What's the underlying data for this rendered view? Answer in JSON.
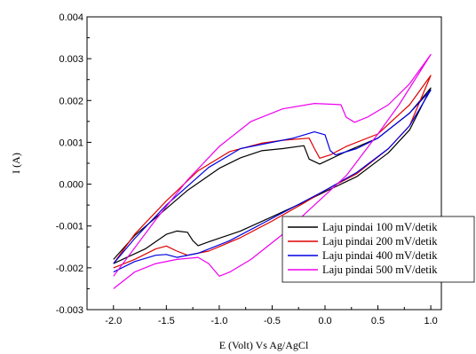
{
  "chart_data": {
    "type": "line",
    "title": "",
    "xlabel": "E (Volt) Vs Ag/AgCl",
    "ylabel": "I (A)",
    "xlim": [
      -2.25,
      1.1
    ],
    "ylim": [
      -0.003,
      0.004
    ],
    "x_ticks": [
      "-2.0",
      "-1.5",
      "-1.0",
      "-0.5",
      "0.0",
      "0.5",
      "1.0"
    ],
    "y_ticks": [
      "0.004",
      "0.003",
      "0.002",
      "0.001",
      "0.000",
      "-0.001",
      "-0.002",
      "-0.003"
    ],
    "grid": false,
    "legend_position": "bottom-right",
    "series": [
      {
        "name": "Laju pindai 100 mV/detik",
        "color": "#000000",
        "points": [
          [
            -2.0,
            -0.0019
          ],
          [
            -1.7,
            -0.00155
          ],
          [
            -1.5,
            -0.0012
          ],
          [
            -1.4,
            -0.00112
          ],
          [
            -1.3,
            -0.00115
          ],
          [
            -1.25,
            -0.00135
          ],
          [
            -1.2,
            -0.00147
          ],
          [
            -1.1,
            -0.00138
          ],
          [
            -0.8,
            -0.00112
          ],
          [
            -0.5,
            -0.00078
          ],
          [
            -0.2,
            -0.00043
          ],
          [
            0.0,
            -0.00018
          ],
          [
            0.3,
            0.00018
          ],
          [
            0.6,
            0.00075
          ],
          [
            0.8,
            0.0013
          ],
          [
            1.0,
            0.0023
          ],
          [
            0.8,
            0.0017
          ],
          [
            0.5,
            0.0011
          ],
          [
            0.2,
            0.00078
          ],
          [
            0.05,
            0.0006
          ],
          [
            -0.05,
            0.00048
          ],
          [
            -0.15,
            0.0006
          ],
          [
            -0.2,
            0.00092
          ],
          [
            -0.4,
            0.00085
          ],
          [
            -0.6,
            0.0008
          ],
          [
            -0.8,
            0.00063
          ],
          [
            -1.0,
            0.00038
          ],
          [
            -1.3,
            -0.00015
          ],
          [
            -1.6,
            -0.0008
          ],
          [
            -1.8,
            -0.00123
          ],
          [
            -2.0,
            -0.0018
          ]
        ]
      },
      {
        "name": "Laju pindai 200 mV/detik",
        "color": "#e00000",
        "points": [
          [
            -2.0,
            -0.002
          ],
          [
            -1.8,
            -0.0018
          ],
          [
            -1.6,
            -0.00155
          ],
          [
            -1.5,
            -0.00148
          ],
          [
            -1.4,
            -0.0016
          ],
          [
            -1.3,
            -0.0017
          ],
          [
            -1.1,
            -0.0016
          ],
          [
            -0.8,
            -0.00128
          ],
          [
            -0.5,
            -0.00088
          ],
          [
            -0.2,
            -0.00045
          ],
          [
            0.0,
            -0.00015
          ],
          [
            0.3,
            0.00025
          ],
          [
            0.6,
            0.00085
          ],
          [
            0.8,
            0.0014
          ],
          [
            1.0,
            0.0026
          ],
          [
            0.8,
            0.0019
          ],
          [
            0.5,
            0.0012
          ],
          [
            0.2,
            0.0009
          ],
          [
            0.05,
            0.0007
          ],
          [
            -0.05,
            0.00062
          ],
          [
            -0.1,
            0.00085
          ],
          [
            -0.15,
            0.0011
          ],
          [
            -0.4,
            0.00105
          ],
          [
            -0.6,
            0.00098
          ],
          [
            -0.9,
            0.00078
          ],
          [
            -1.2,
            0.00032
          ],
          [
            -1.5,
            -0.0004
          ],
          [
            -1.8,
            -0.0012
          ],
          [
            -2.0,
            -0.0019
          ]
        ]
      },
      {
        "name": "Laju pindai 400 mV/detik",
        "color": "#0000e0",
        "points": [
          [
            -2.0,
            -0.0021
          ],
          [
            -1.8,
            -0.00185
          ],
          [
            -1.6,
            -0.0017
          ],
          [
            -1.5,
            -0.00168
          ],
          [
            -1.4,
            -0.00175
          ],
          [
            -1.2,
            -0.00165
          ],
          [
            -0.9,
            -0.00135
          ],
          [
            -0.6,
            -0.00095
          ],
          [
            -0.3,
            -0.00055
          ],
          [
            0.0,
            -0.00015
          ],
          [
            0.3,
            0.00028
          ],
          [
            0.6,
            0.00085
          ],
          [
            0.8,
            0.0014
          ],
          [
            1.0,
            0.00225
          ],
          [
            0.8,
            0.0017
          ],
          [
            0.5,
            0.0011
          ],
          [
            0.3,
            0.00085
          ],
          [
            0.1,
            0.0007
          ],
          [
            0.05,
            0.0008
          ],
          [
            0.0,
            0.00118
          ],
          [
            -0.1,
            0.00125
          ],
          [
            -0.3,
            0.0011
          ],
          [
            -0.5,
            0.001
          ],
          [
            -0.8,
            0.00085
          ],
          [
            -1.1,
            0.0004
          ],
          [
            -1.5,
            -0.0005
          ],
          [
            -1.8,
            -0.0013
          ],
          [
            -2.0,
            -0.0019
          ]
        ]
      },
      {
        "name": "Laju pindai 500 mV/detik",
        "color": "#ee00ee",
        "points": [
          [
            -2.0,
            -0.0025
          ],
          [
            -1.8,
            -0.0021
          ],
          [
            -1.6,
            -0.0019
          ],
          [
            -1.4,
            -0.0018
          ],
          [
            -1.2,
            -0.00175
          ],
          [
            -1.1,
            -0.0019
          ],
          [
            -1.0,
            -0.0022
          ],
          [
            -0.9,
            -0.0021
          ],
          [
            -0.7,
            -0.0018
          ],
          [
            -0.4,
            -0.0012
          ],
          [
            -0.1,
            -0.0005
          ],
          [
            0.2,
            0.0002
          ],
          [
            0.5,
            0.0012
          ],
          [
            0.7,
            0.0019
          ],
          [
            1.0,
            0.0031
          ],
          [
            0.8,
            0.0024
          ],
          [
            0.6,
            0.0019
          ],
          [
            0.4,
            0.0016
          ],
          [
            0.28,
            0.00148
          ],
          [
            0.2,
            0.0016
          ],
          [
            0.15,
            0.0019
          ],
          [
            -0.1,
            0.00193
          ],
          [
            -0.4,
            0.0018
          ],
          [
            -0.7,
            0.0015
          ],
          [
            -1.0,
            0.0009
          ],
          [
            -1.3,
            0.0001
          ],
          [
            -1.6,
            -0.00085
          ],
          [
            -2.0,
            -0.0022
          ]
        ]
      }
    ]
  }
}
